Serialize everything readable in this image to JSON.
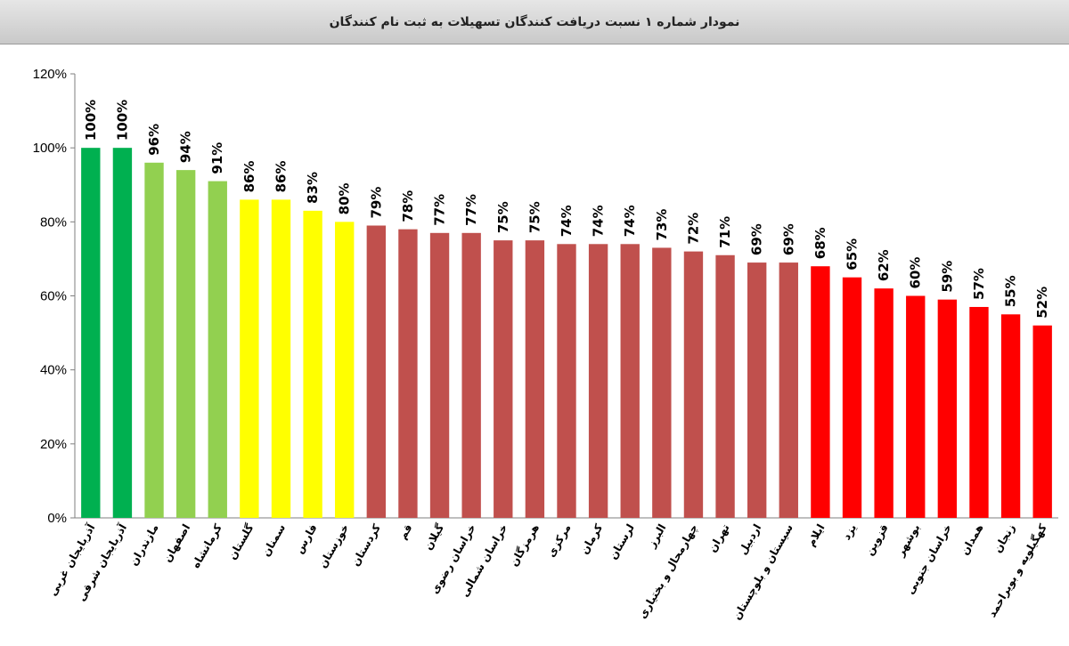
{
  "chart_data": {
    "type": "bar",
    "title": "نمودار شماره ۱ نسبت دریافت کنندگان تسهیلات به ثبت نام کنندگان",
    "xlabel": "",
    "ylabel": "",
    "ylim": [
      0,
      120
    ],
    "yticks": [
      "0%",
      "20%",
      "40%",
      "60%",
      "80%",
      "100%",
      "120%"
    ],
    "grid": false,
    "categories": [
      "آذربایجان غربی",
      "آذربایجان شرقی",
      "مازندران",
      "اصفهان",
      "کرمانشاه",
      "گلستان",
      "سمنان",
      "فارس",
      "خوزستان",
      "کردستان",
      "قم",
      "گیلان",
      "خراسان رضوی",
      "خراسان شمالی",
      "هرمزگان",
      "مرکزی",
      "کرمان",
      "لرستان",
      "البرز",
      "چهارمحال و بختیاری",
      "تهران",
      "اردبیل",
      "سیستان و بلوچستان",
      "ایلام",
      "یزد",
      "قزوین",
      "بوشهر",
      "خراسان جنوبی",
      "همدان",
      "زنجان",
      "کهگیلویه و بویراحمد"
    ],
    "values": [
      100,
      100,
      96,
      94,
      91,
      86,
      86,
      83,
      80,
      79,
      78,
      77,
      77,
      75,
      75,
      74,
      74,
      74,
      73,
      72,
      71,
      69,
      69,
      68,
      65,
      62,
      60,
      59,
      57,
      55,
      52
    ],
    "data_labels": [
      "100%",
      "100%",
      "96%",
      "94%",
      "91%",
      "86%",
      "86%",
      "83%",
      "80%",
      "79%",
      "78%",
      "77%",
      "77%",
      "75%",
      "75%",
      "74%",
      "74%",
      "74%",
      "73%",
      "72%",
      "71%",
      "69%",
      "69%",
      "68%",
      "65%",
      "62%",
      "60%",
      "59%",
      "57%",
      "55%",
      "52%"
    ],
    "bar_colors": [
      "#00b050",
      "#00b050",
      "#92d050",
      "#92d050",
      "#92d050",
      "#ffff00",
      "#ffff00",
      "#ffff00",
      "#ffff00",
      "#c0504d",
      "#c0504d",
      "#c0504d",
      "#c0504d",
      "#c0504d",
      "#c0504d",
      "#c0504d",
      "#c0504d",
      "#c0504d",
      "#c0504d",
      "#c0504d",
      "#c0504d",
      "#c0504d",
      "#c0504d",
      "#ff0000",
      "#ff0000",
      "#ff0000",
      "#ff0000",
      "#ff0000",
      "#ff0000",
      "#ff0000",
      "#ff0000"
    ]
  }
}
